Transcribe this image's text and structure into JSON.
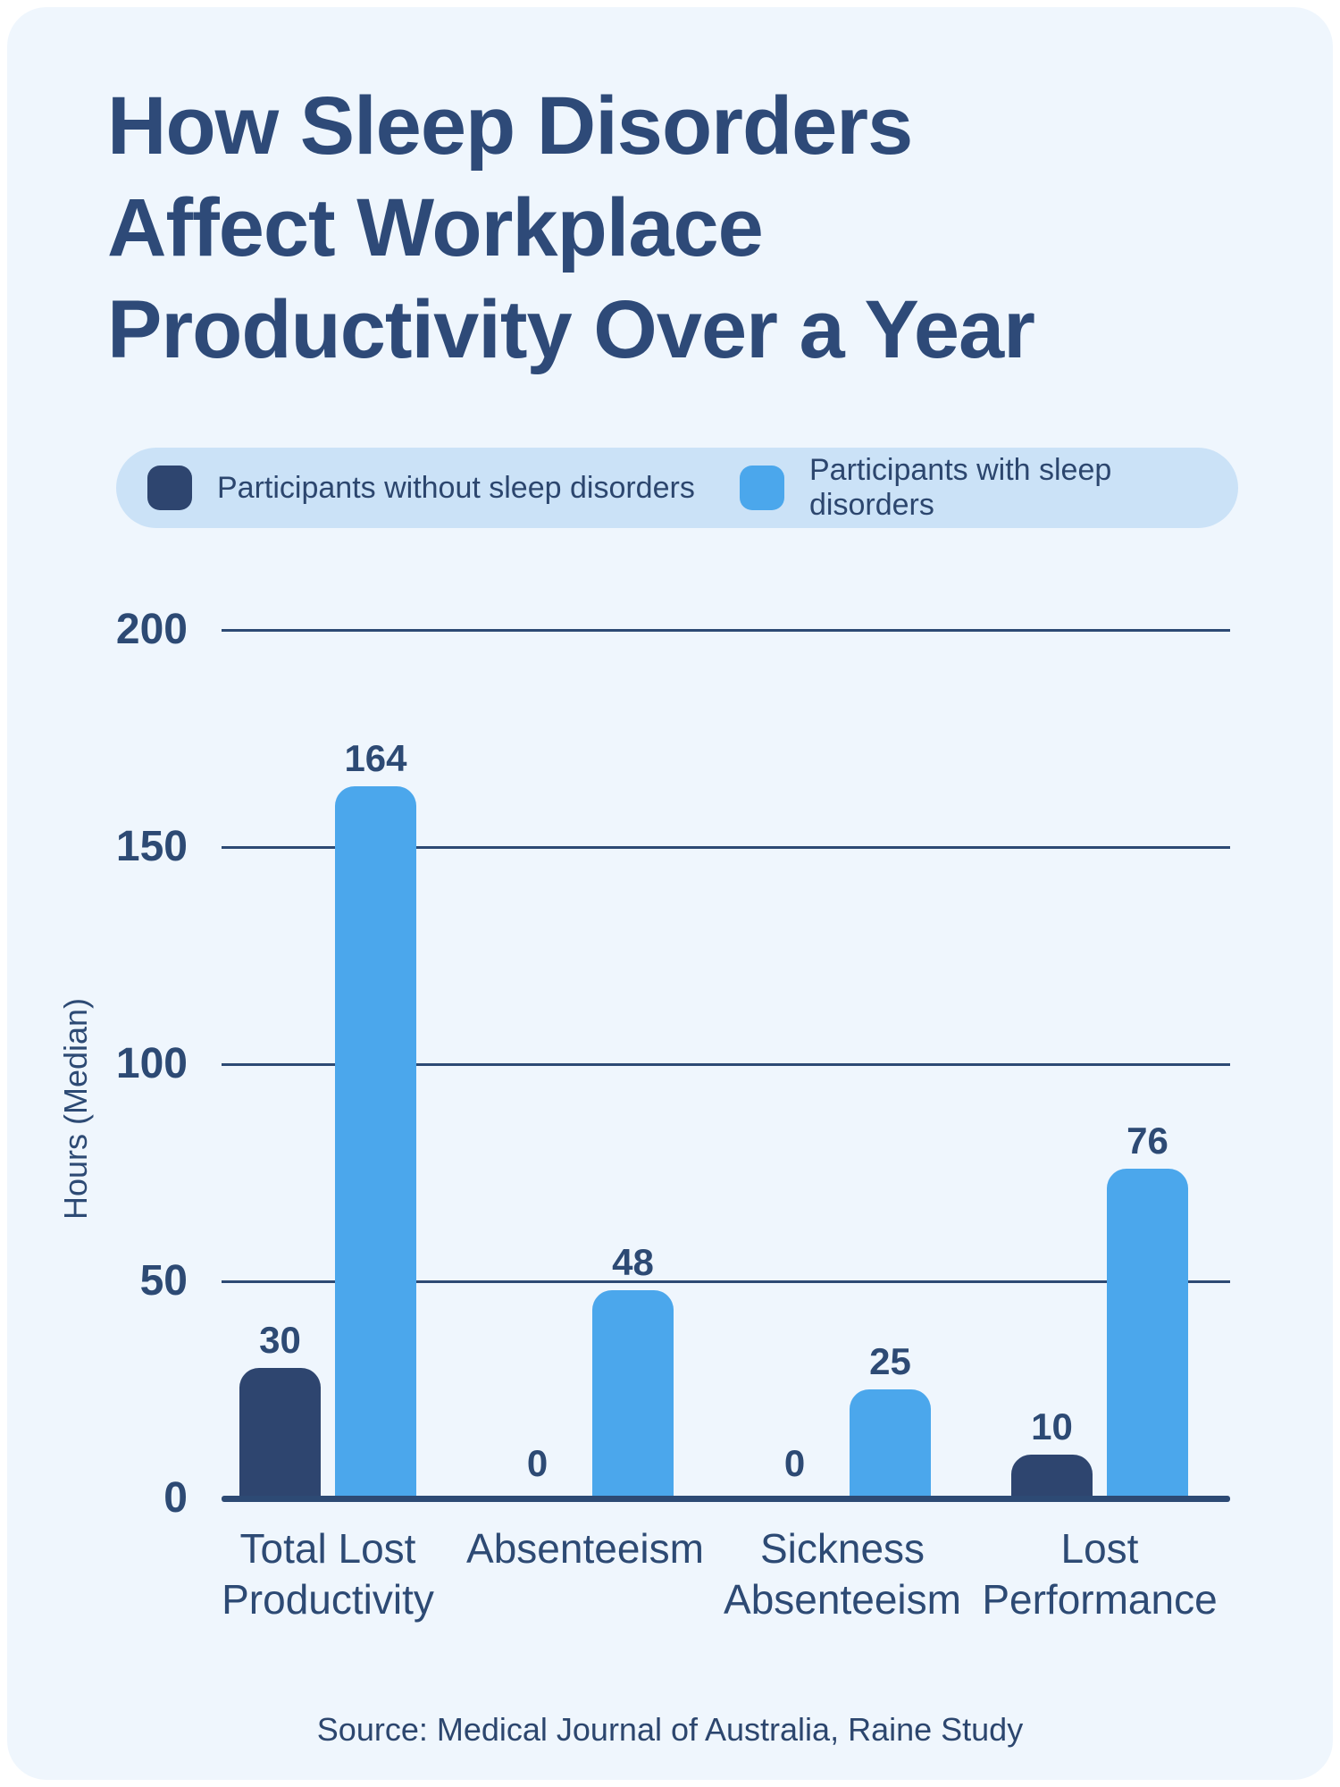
{
  "title": {
    "lines": [
      "How Sleep Disorders",
      "Affect Workplace",
      "Productivity Over a Year"
    ]
  },
  "legend": {
    "items": [
      {
        "label": "Participants without sleep disorders",
        "color": "#2e456f"
      },
      {
        "label": "Participants with sleep disorders",
        "color": "#4ba7ec"
      }
    ],
    "background": "#cbe2f7"
  },
  "source": "Source: Medical Journal of Australia, Raine Study",
  "colors": {
    "card_background": "#eff6fd",
    "navy_text": "#2d4a74",
    "dark_bar": "#2e456f",
    "light_bar": "#4ba7ec"
  },
  "chart_data": {
    "type": "bar",
    "title": "How Sleep Disorders Affect Workplace Productivity Over a Year",
    "categories": [
      "Total Lost Productivity",
      "Absenteeism",
      "Sickness Absenteeism",
      "Lost Performance"
    ],
    "category_lines": [
      [
        "Total Lost",
        "Productivity"
      ],
      [
        "Absenteeism"
      ],
      [
        "Sickness",
        "Absenteeism"
      ],
      [
        "Lost",
        "Performance"
      ]
    ],
    "series": [
      {
        "name": "Participants without sleep disorders",
        "color": "#2e456f",
        "values": [
          30,
          0,
          0,
          10
        ]
      },
      {
        "name": "Participants with sleep disorders",
        "color": "#4ba7ec",
        "values": [
          164,
          48,
          25,
          76
        ]
      }
    ],
    "xlabel": "",
    "ylabel": "Hours (Median)",
    "ylim": [
      0,
      200
    ],
    "ytick_interval": 50,
    "yticks": [
      0,
      50,
      100,
      150,
      200
    ],
    "grid": true,
    "legend_position": "top",
    "value_labels": true
  }
}
